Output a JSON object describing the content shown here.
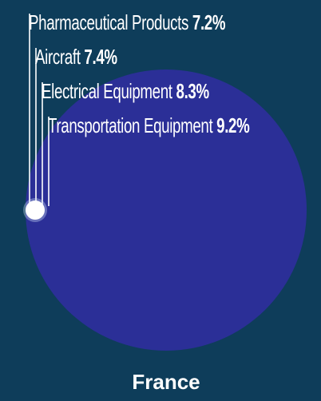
{
  "chart_data": {
    "type": "bubble",
    "category": "France",
    "items": [
      {
        "label": "Pharmaceutical Products",
        "value_text": "7.2%",
        "value": 7.2
      },
      {
        "label": "Aircraft",
        "value_text": "7.4%",
        "value": 7.4
      },
      {
        "label": "Electrical Equipment",
        "value_text": "8.3%",
        "value": 8.3
      },
      {
        "label": "Transportation Equipment",
        "value_text": "9.2%",
        "value": 9.2
      }
    ]
  },
  "colors": {
    "background": "#0e3d5a",
    "bubble": "#2b2f97",
    "marker": "#ffffff",
    "text": "#ffffff"
  }
}
